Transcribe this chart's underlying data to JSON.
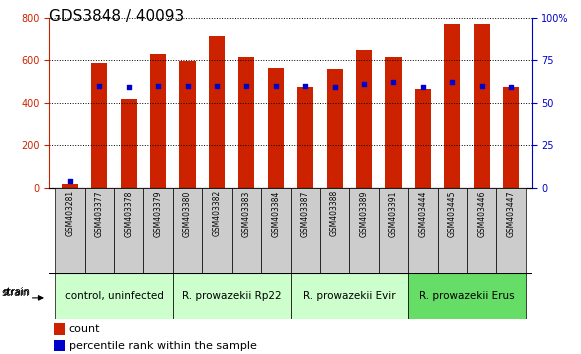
{
  "title": "GDS3848 / 40093",
  "samples": [
    "GSM403281",
    "GSM403377",
    "GSM403378",
    "GSM403379",
    "GSM403380",
    "GSM403382",
    "GSM403383",
    "GSM403384",
    "GSM403387",
    "GSM403388",
    "GSM403389",
    "GSM403391",
    "GSM403444",
    "GSM403445",
    "GSM403446",
    "GSM403447"
  ],
  "counts": [
    15,
    585,
    415,
    630,
    595,
    715,
    615,
    565,
    475,
    560,
    650,
    615,
    465,
    770,
    770,
    475
  ],
  "percentiles": [
    4,
    60,
    59,
    60,
    60,
    60,
    60,
    60,
    60,
    59,
    61,
    62,
    59,
    62,
    60,
    59
  ],
  "bar_color": "#cc2200",
  "percentile_color": "#0000cc",
  "left_axis_color": "#cc2200",
  "right_axis_color": "#0000cc",
  "ylim_left": [
    0,
    800
  ],
  "ylim_right": [
    0,
    100
  ],
  "yticks_left": [
    0,
    200,
    400,
    600,
    800
  ],
  "yticks_right": [
    0,
    25,
    50,
    75,
    100
  ],
  "bar_width": 0.55,
  "groups": [
    {
      "label": "control, uninfected",
      "start": 0,
      "end": 3,
      "color": "#ccffcc"
    },
    {
      "label": "R. prowazekii Rp22",
      "start": 4,
      "end": 7,
      "color": "#ccffcc"
    },
    {
      "label": "R. prowazekii Evir",
      "start": 8,
      "end": 11,
      "color": "#ccffcc"
    },
    {
      "label": "R. prowazekii Erus",
      "start": 12,
      "end": 15,
      "color": "#66dd66"
    }
  ],
  "strain_label": "strain",
  "legend_count_label": "count",
  "legend_percentile_label": "percentile rank within the sample",
  "title_fontsize": 11,
  "tick_fontsize": 7,
  "sample_fontsize": 5.5,
  "group_fontsize": 7.5,
  "legend_fontsize": 8
}
